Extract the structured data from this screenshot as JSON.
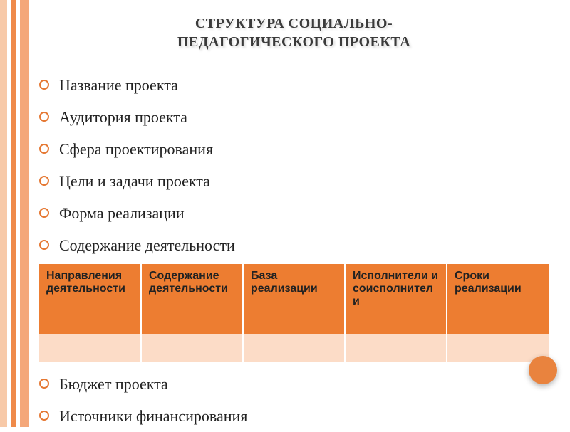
{
  "title_line1": "СТРУКТУРА СОЦИАЛЬНО-",
  "title_line2": "ПЕДАГОГИЧЕСКОГО ПРОЕКТА",
  "bullets_top": [
    "Название проекта",
    "Аудитория проекта",
    "Сфера проектирования",
    "Цели и задачи проекта",
    "Форма реализации",
    "Содержание деятельности"
  ],
  "table": {
    "columns": [
      "Направления деятельности",
      "Содержание деятельности",
      "База реализации",
      "Исполнители и соисполнители",
      "Сроки реализации"
    ],
    "header_bg": "#ed7d31",
    "row_bg": "#fcdcc7",
    "header_fontsize": 16,
    "header_font": "Arial",
    "header_fontweight": "bold"
  },
  "bullets_bottom": [
    "Бюджет проекта",
    "Источники финансирования"
  ],
  "styling": {
    "bullet_ring_color": "#e57833",
    "title_color": "#3b3b3b",
    "body_font": "Georgia",
    "body_fontsize": 22,
    "stripes": [
      "#f7c9a8",
      "#ffffff",
      "#ef8a4a",
      "#ffffff",
      "#f4a77a"
    ],
    "nav_button_color": "#e9833e"
  }
}
